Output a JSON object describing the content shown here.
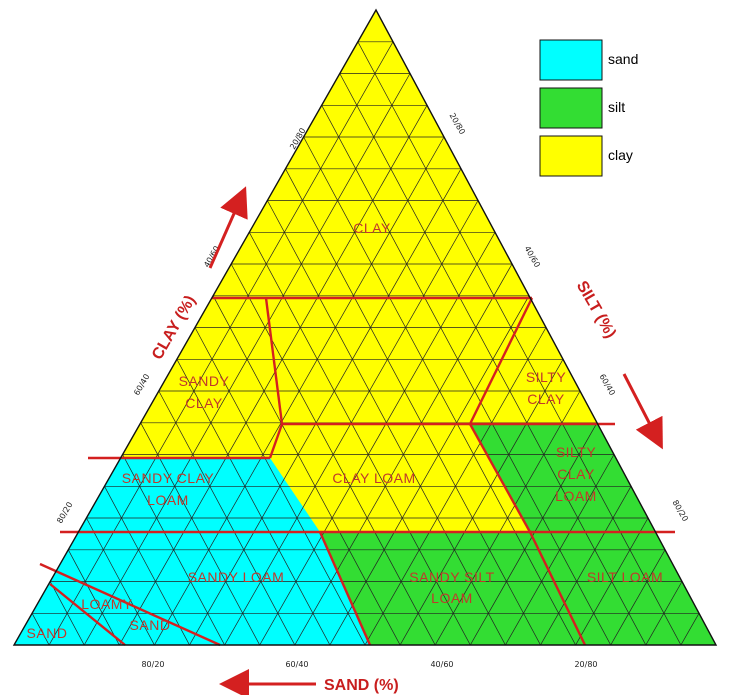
{
  "legend": [
    {
      "label": "sand",
      "color": "#00ffff"
    },
    {
      "label": "silt",
      "color": "#33dd33"
    },
    {
      "label": "clay",
      "color": "#ffff00"
    }
  ],
  "axes": {
    "clay": "CLAY (%)",
    "silt": "SILT (%)",
    "sand": "SAND (%)"
  },
  "regions": {
    "clay": "CLAY",
    "sandy_clay_1": "SANDY",
    "sandy_clay_2": "CLAY",
    "silty_clay_1": "SILTY",
    "silty_clay_2": "CLAY",
    "sandy_clay_loam_1": "SANDY CLAY",
    "sandy_clay_loam_2": "LOAM",
    "clay_loam": "CLAY LOAM",
    "silty_clay_loam_1": "SILTY",
    "silty_clay_loam_2": "CLAY",
    "silty_clay_loam_3": "LOAM",
    "sandy_loam": "SANDY LOAM",
    "sandy_silt_loam_1": "SANDY SILT",
    "sandy_silt_loam_2": "LOAM",
    "silt_loam": "SILT LOAM",
    "loamy_sand_1": "LOAMY",
    "loamy_sand_2": "SAND",
    "sand": "SAND"
  },
  "ticks": {
    "bottom": [
      "80/20",
      "60/40",
      "40/60",
      "20/80"
    ],
    "left": [
      "20/80",
      "40/60",
      "60/40",
      "80/20"
    ],
    "right": [
      "20/80",
      "40/60",
      "60/40",
      "80/20"
    ]
  }
}
